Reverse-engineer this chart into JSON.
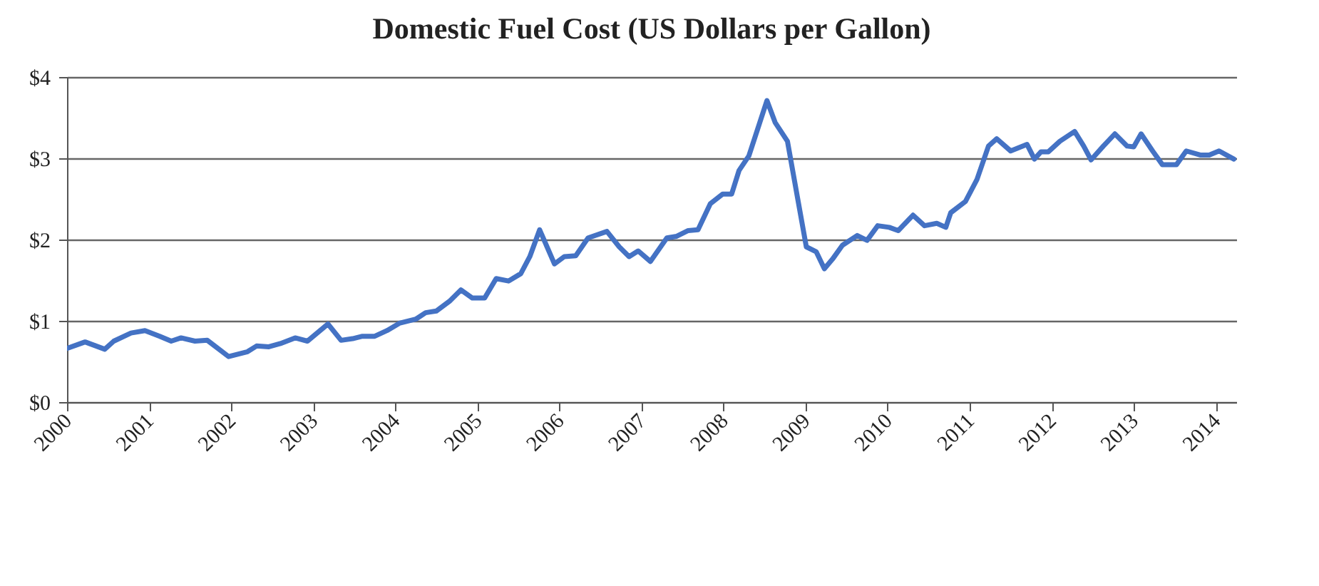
{
  "chart_data": {
    "type": "line",
    "title": "Domestic Fuel Cost (US Dollars per Gallon)",
    "xlim": [
      2000,
      2014.25
    ],
    "xticks": [
      2000,
      2001,
      2002,
      2003,
      2004,
      2005,
      2006,
      2007,
      2008,
      2009,
      2010,
      2011,
      2012,
      2013,
      2014
    ],
    "ylim": [
      0,
      4
    ],
    "yticks": [
      {
        "value": 0,
        "label": "$0"
      },
      {
        "value": 1,
        "label": "$1"
      },
      {
        "value": 2,
        "label": "$2"
      },
      {
        "value": 3,
        "label": "$3"
      },
      {
        "value": 4,
        "label": "$4"
      }
    ],
    "grid": "y",
    "line_style": "solid",
    "series": [
      {
        "color": "#4472c4",
        "x": [
          2000.0,
          2000.22,
          2000.46,
          2000.57,
          2000.78,
          2000.95,
          2001.13,
          2001.27,
          2001.39,
          2001.56,
          2001.71,
          2001.97,
          2002.2,
          2002.31,
          2002.46,
          2002.6,
          2002.78,
          2002.93,
          2003.18,
          2003.34,
          2003.48,
          2003.6,
          2003.75,
          2003.9,
          2004.05,
          2004.25,
          2004.37,
          2004.5,
          2004.66,
          2004.8,
          2004.94,
          2005.09,
          2005.23,
          2005.38,
          2005.53,
          2005.64,
          2005.76,
          2005.94,
          2006.06,
          2006.2,
          2006.35,
          2006.58,
          2006.73,
          2006.85,
          2006.96,
          2007.11,
          2007.31,
          2007.43,
          2007.57,
          2007.69,
          2007.84,
          2007.99,
          2008.1,
          2008.19,
          2008.31,
          2008.53,
          2008.63,
          2008.78,
          2008.9,
          2009.01,
          2009.13,
          2009.23,
          2009.33,
          2009.45,
          2009.63,
          2009.75,
          2009.88,
          2010.02,
          2010.13,
          2010.31,
          2010.45,
          2010.6,
          2010.71,
          2010.77,
          2010.95,
          2011.09,
          2011.23,
          2011.33,
          2011.5,
          2011.7,
          2011.79,
          2011.87,
          2011.96,
          2012.1,
          2012.28,
          2012.39,
          2012.48,
          2012.63,
          2012.77,
          2012.92,
          2013.0,
          2013.09,
          2013.23,
          2013.35,
          2013.52,
          2013.64,
          2013.81,
          2013.92,
          2014.04,
          2014.22
        ],
        "values": [
          0.66,
          0.74,
          0.65,
          0.75,
          0.85,
          0.88,
          0.81,
          0.75,
          0.79,
          0.75,
          0.76,
          0.56,
          0.62,
          0.69,
          0.68,
          0.72,
          0.79,
          0.75,
          0.96,
          0.76,
          0.78,
          0.81,
          0.81,
          0.88,
          0.97,
          1.02,
          1.1,
          1.12,
          1.24,
          1.38,
          1.28,
          1.28,
          1.52,
          1.49,
          1.58,
          1.79,
          2.12,
          1.7,
          1.79,
          1.8,
          2.02,
          2.1,
          1.91,
          1.79,
          1.86,
          1.73,
          2.02,
          2.04,
          2.11,
          2.12,
          2.44,
          2.56,
          2.56,
          2.85,
          3.03,
          3.71,
          3.44,
          3.21,
          2.53,
          1.91,
          1.85,
          1.64,
          1.76,
          1.93,
          2.05,
          1.99,
          2.17,
          2.15,
          2.11,
          2.3,
          2.17,
          2.2,
          2.15,
          2.33,
          2.47,
          2.74,
          3.15,
          3.24,
          3.09,
          3.17,
          2.99,
          3.08,
          3.08,
          3.21,
          3.33,
          3.15,
          2.98,
          3.15,
          3.3,
          3.15,
          3.14,
          3.3,
          3.09,
          2.92,
          2.92,
          3.09,
          3.04,
          3.04,
          3.09,
          2.99
        ]
      }
    ]
  }
}
